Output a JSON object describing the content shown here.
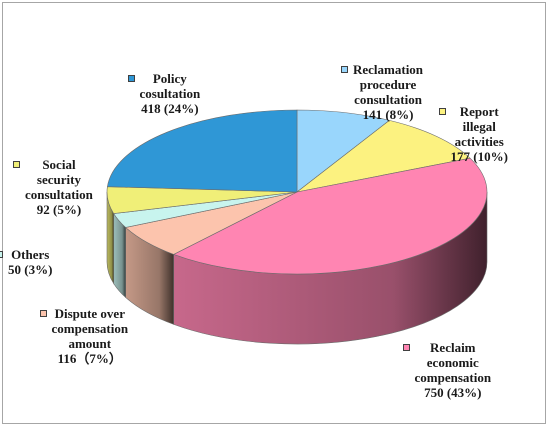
{
  "chart_data": {
    "type": "pie",
    "style": "3d",
    "legend": "none",
    "slices": [
      {
        "name": "Reclamation procedure consultation",
        "value": 141,
        "percent": "8%",
        "label_lines": [
          "Reclamation",
          "procedure",
          "consultation",
          "141 (8%)"
        ],
        "color": "#99d6fc"
      },
      {
        "name": "Report illegal activities",
        "value": 177,
        "percent": "10%",
        "label_lines": [
          "Report",
          "illegal",
          "activities",
          "177 (10%)"
        ],
        "color": "#fcf280"
      },
      {
        "name": "Reclaim economic compensation",
        "value": 750,
        "percent": "43%",
        "label_lines": [
          "Reclaim",
          "economic",
          "compensation",
          "750 (43%)"
        ],
        "color": "#ff85b2"
      },
      {
        "name": "Dispute over compensation amount",
        "value": 116,
        "percent": "7%",
        "label_lines": [
          "Dispute over",
          "compensation",
          "amount",
          "116（7%）"
        ],
        "color": "#fcc4ad"
      },
      {
        "name": "Others",
        "value": 50,
        "percent": "3%",
        "label_lines": [
          "Others",
          "50 (3%)"
        ],
        "color": "#c8f4ee"
      },
      {
        "name": "Social security consultation",
        "value": 92,
        "percent": "5%",
        "label_lines": [
          "Social",
          "security",
          "consultation",
          "92 (5%)"
        ],
        "color": "#f0ef78"
      },
      {
        "name": "Policy cosultation",
        "value": 418,
        "percent": "24%",
        "label_lines": [
          "Policy",
          "cosultation",
          "418 (24%)"
        ],
        "color": "#2f97d6"
      }
    ]
  }
}
